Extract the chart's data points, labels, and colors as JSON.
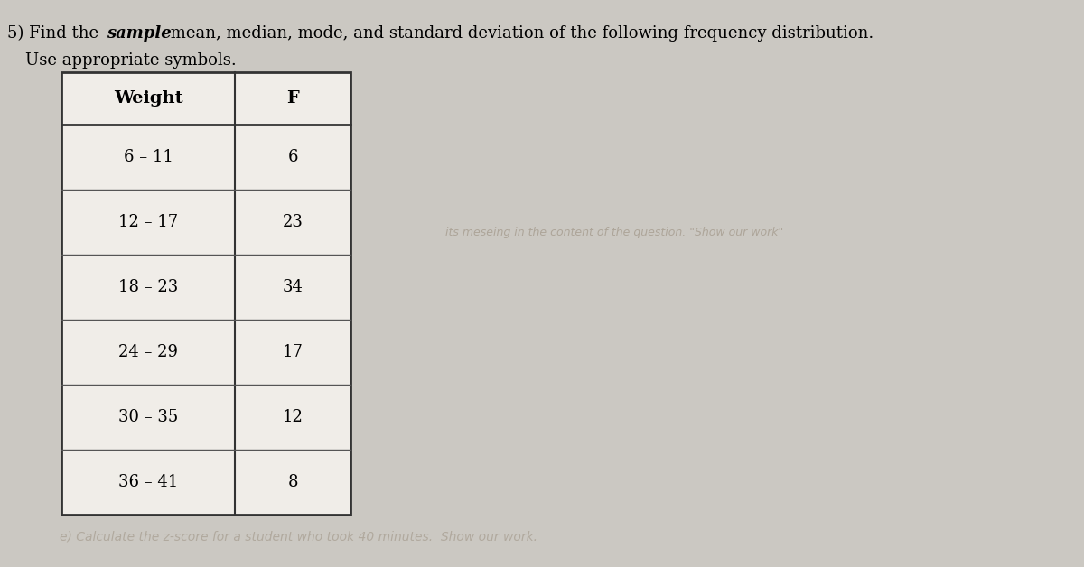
{
  "title_number": "5)",
  "title_bold_italic": "sample",
  "title_rest": " mean, median, mode, and standard deviation of the following frequency distribution.",
  "subtitle": "Use appropriate symbols.",
  "col_headers": [
    "Weight",
    "F"
  ],
  "rows": [
    [
      "6 – 11",
      "6"
    ],
    [
      "12 – 17",
      "23"
    ],
    [
      "18 – 23",
      "34"
    ],
    [
      "24 – 29",
      "17"
    ],
    [
      "30 – 35",
      "12"
    ],
    [
      "36 – 41",
      "8"
    ]
  ],
  "background_color": "#cbc8c2",
  "table_bg": "#f0ede8",
  "faded_text_color": "#a89f92",
  "faded_text": "its meseing in the content of the question. \"Show our work\"",
  "bottom_faded_text": "e) Calculate the z-score for a student who took 40 minutes.  Show our work.",
  "title_fontsize": 13,
  "subtitle_fontsize": 13,
  "table_fontsize": 13,
  "header_fontsize": 14
}
